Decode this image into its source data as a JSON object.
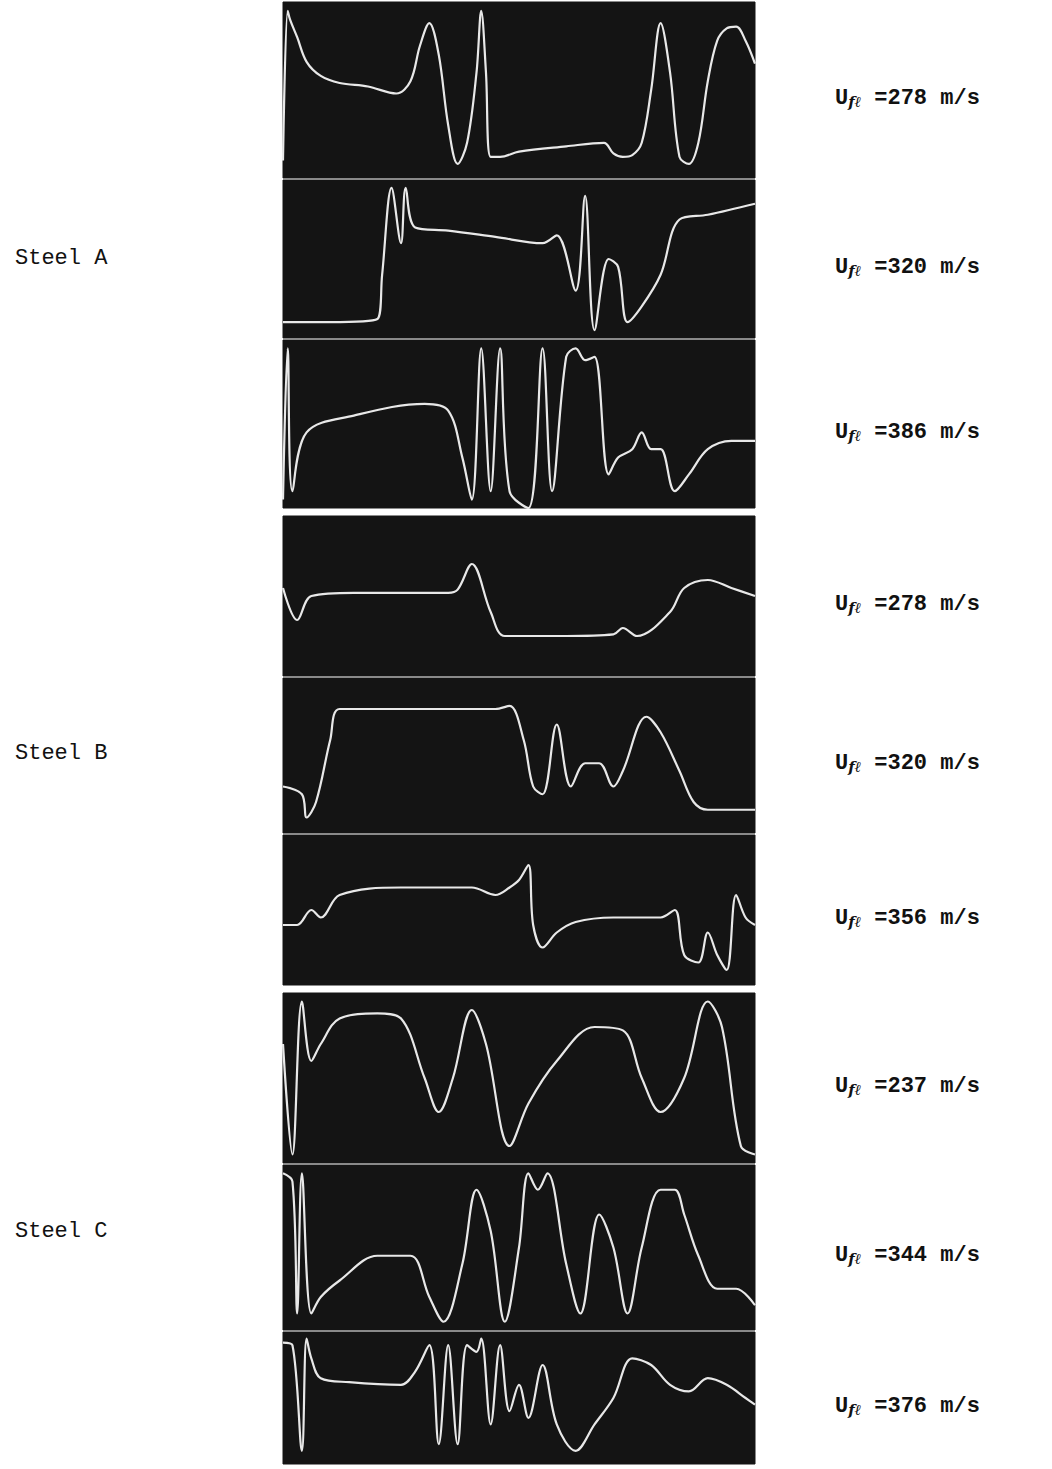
{
  "chart_data": [
    {
      "type": "line",
      "group": "Steel A",
      "title": {
        "symbol": "U",
        "subscript": "fℓ",
        "text": "=278 m/s"
      },
      "x": [
        0,
        1,
        1.5,
        3,
        5,
        8,
        12,
        18,
        24,
        27,
        29,
        31,
        33,
        35,
        37,
        39,
        41,
        42,
        43,
        44,
        46,
        50,
        60,
        68,
        70,
        72,
        74,
        76,
        78,
        80,
        82,
        84,
        86,
        88,
        90,
        92,
        94,
        96,
        98,
        100
      ],
      "values": [
        10,
        95,
        90,
        80,
        66,
        58,
        54,
        52,
        48,
        55,
        75,
        88,
        70,
        30,
        8,
        20,
        60,
        95,
        60,
        12,
        12,
        15,
        18,
        20,
        14,
        12,
        13,
        20,
        50,
        88,
        60,
        12,
        8,
        20,
        55,
        78,
        85,
        86,
        78,
        65
      ],
      "color": "#e8e8e8",
      "xlim": [
        0,
        100
      ],
      "ylim": [
        0,
        100
      ],
      "grid": false,
      "tick_labels": false
    },
    {
      "type": "line",
      "group": "Steel A",
      "title": {
        "symbol": "U",
        "subscript": "fℓ",
        "text": "=320 m/s"
      },
      "x": [
        0,
        10,
        20,
        21,
        23,
        25,
        26,
        28,
        35,
        45,
        55,
        58,
        62,
        64,
        66,
        69,
        71,
        73,
        76,
        80,
        84,
        90,
        100
      ],
      "values": [
        10,
        10,
        12,
        40,
        95,
        60,
        95,
        70,
        68,
        64,
        60,
        65,
        30,
        90,
        5,
        50,
        45,
        10,
        20,
        40,
        75,
        78,
        85
      ],
      "color": "#e8e8e8",
      "xlim": [
        0,
        100
      ],
      "ylim": [
        0,
        100
      ],
      "grid": false,
      "tick_labels": false
    },
    {
      "type": "line",
      "group": "Steel A",
      "title": {
        "symbol": "U",
        "subscript": "fℓ",
        "text": "=386 m/s"
      },
      "x": [
        0,
        1,
        2,
        5,
        15,
        30,
        35,
        38,
        40,
        42,
        44,
        46,
        48,
        52,
        55,
        57,
        60,
        62,
        64,
        66,
        69,
        71,
        74,
        76,
        78,
        80,
        83,
        86,
        90,
        95,
        100
      ],
      "values": [
        5,
        95,
        10,
        45,
        55,
        62,
        58,
        30,
        5,
        95,
        10,
        95,
        10,
        0,
        95,
        10,
        90,
        95,
        88,
        90,
        20,
        30,
        35,
        45,
        35,
        35,
        10,
        20,
        35,
        40,
        40
      ],
      "color": "#e8e8e8",
      "xlim": [
        0,
        100
      ],
      "ylim": [
        0,
        100
      ],
      "grid": false,
      "tick_labels": false
    },
    {
      "type": "line",
      "group": "Steel B",
      "title": {
        "symbol": "U",
        "subscript": "fℓ",
        "text": "=278 m/s"
      },
      "x": [
        0,
        3,
        6,
        15,
        35,
        37,
        40,
        44,
        47,
        60,
        70,
        72,
        75,
        82,
        85,
        90,
        95,
        100
      ],
      "values": [
        55,
        35,
        50,
        52,
        52,
        54,
        70,
        40,
        25,
        25,
        26,
        30,
        25,
        40,
        55,
        60,
        55,
        50
      ],
      "color": "#e8e8e8",
      "xlim": [
        0,
        100
      ],
      "ylim": [
        0,
        100
      ],
      "grid": false,
      "tick_labels": false
    },
    {
      "type": "line",
      "group": "Steel B",
      "title": {
        "symbol": "U",
        "subscript": "fℓ",
        "text": "=320 m/s"
      },
      "x": [
        0,
        4,
        5,
        7,
        10,
        12,
        25,
        45,
        48,
        51,
        53,
        55,
        58,
        61,
        64,
        67,
        70,
        72,
        77,
        80,
        84,
        87,
        90,
        100
      ],
      "values": [
        30,
        25,
        10,
        20,
        60,
        80,
        80,
        80,
        82,
        60,
        30,
        25,
        70,
        30,
        45,
        45,
        30,
        40,
        75,
        65,
        40,
        20,
        15,
        15
      ],
      "color": "#e8e8e8",
      "xlim": [
        0,
        100
      ],
      "ylim": [
        0,
        100
      ],
      "grid": false,
      "tick_labels": false
    },
    {
      "type": "line",
      "group": "Steel B",
      "title": {
        "symbol": "U",
        "subscript": "fℓ",
        "text": "=356 m/s"
      },
      "x": [
        0,
        3,
        6,
        8,
        12,
        25,
        40,
        45,
        48,
        50,
        52,
        53,
        55,
        58,
        62,
        70,
        80,
        83,
        85,
        88,
        90,
        92,
        94,
        96,
        98,
        100
      ],
      "values": [
        40,
        40,
        50,
        45,
        60,
        65,
        65,
        60,
        65,
        70,
        80,
        40,
        25,
        35,
        42,
        45,
        45,
        50,
        20,
        15,
        35,
        20,
        10,
        60,
        45,
        40
      ],
      "color": "#e8e8e8",
      "xlim": [
        0,
        100
      ],
      "ylim": [
        0,
        100
      ],
      "grid": false,
      "tick_labels": false
    },
    {
      "type": "line",
      "group": "Steel C",
      "title": {
        "symbol": "U",
        "subscript": "fℓ",
        "text": "=237 m/s"
      },
      "x": [
        0,
        2,
        4,
        6,
        8,
        12,
        20,
        25,
        30,
        33,
        36,
        40,
        43,
        48,
        52,
        58,
        66,
        72,
        76,
        80,
        85,
        90,
        93,
        97,
        100
      ],
      "values": [
        70,
        5,
        95,
        60,
        70,
        85,
        88,
        85,
        50,
        30,
        50,
        90,
        70,
        10,
        35,
        60,
        80,
        78,
        50,
        30,
        50,
        95,
        80,
        10,
        5
      ],
      "color": "#e8e8e8",
      "xlim": [
        0,
        100
      ],
      "ylim": [
        0,
        100
      ],
      "grid": false,
      "tick_labels": false
    },
    {
      "type": "line",
      "group": "Steel C",
      "title": {
        "symbol": "U",
        "subscript": "fℓ",
        "text": "=344 m/s"
      },
      "x": [
        0,
        2,
        3,
        4,
        6,
        8,
        12,
        20,
        27,
        31,
        34,
        38,
        41,
        44,
        47,
        50,
        52,
        54,
        56,
        60,
        63,
        67,
        70,
        73,
        76,
        80,
        83,
        85,
        88,
        92,
        96,
        100
      ],
      "values": [
        95,
        90,
        10,
        95,
        10,
        20,
        30,
        45,
        45,
        20,
        5,
        40,
        85,
        60,
        5,
        50,
        95,
        85,
        95,
        40,
        10,
        70,
        50,
        10,
        50,
        85,
        85,
        70,
        45,
        25,
        25,
        15
      ],
      "color": "#e8e8e8",
      "xlim": [
        0,
        100
      ],
      "ylim": [
        0,
        100
      ],
      "grid": false,
      "tick_labels": false
    },
    {
      "type": "line",
      "group": "Steel C",
      "title": {
        "symbol": "U",
        "subscript": "fℓ",
        "text": "=376 m/s"
      },
      "x": [
        0,
        2,
        4,
        5,
        6,
        8,
        14,
        25,
        28,
        31,
        33,
        35,
        37,
        39,
        41,
        42,
        44,
        46,
        48,
        50,
        52,
        55,
        58,
        62,
        66,
        70,
        74,
        78,
        82,
        86,
        90,
        94,
        98,
        100
      ],
      "values": [
        92,
        90,
        10,
        95,
        80,
        65,
        62,
        60,
        70,
        90,
        15,
        90,
        15,
        90,
        85,
        95,
        30,
        90,
        40,
        60,
        35,
        75,
        30,
        10,
        30,
        50,
        80,
        75,
        60,
        55,
        65,
        60,
        50,
        45
      ],
      "color": "#e8e8e8",
      "xlim": [
        0,
        100
      ],
      "ylim": [
        0,
        100
      ],
      "grid": false,
      "tick_labels": false
    }
  ]
}
